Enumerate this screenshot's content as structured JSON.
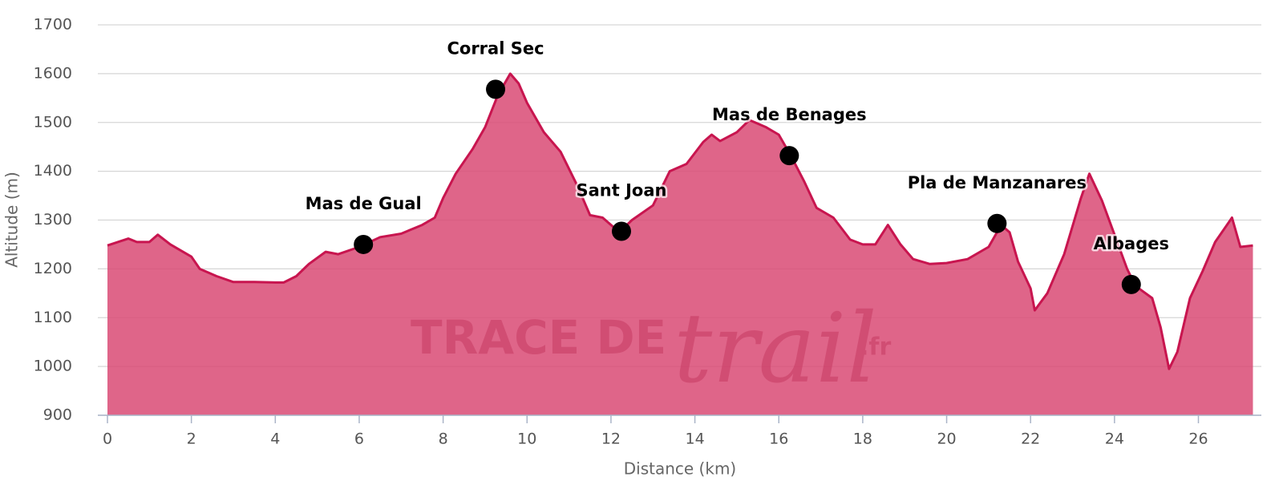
{
  "chart_data": {
    "type": "area",
    "x_label": "Distance (km)",
    "y_label": "Altitude (m)",
    "watermark": {
      "main": "TRACE DE",
      "script": "trail",
      "suffix": ".fr"
    },
    "xlim": [
      0,
      27.5
    ],
    "xticks": [
      0,
      2,
      4,
      6,
      8,
      10,
      12,
      14,
      16,
      18,
      20,
      22,
      24,
      26
    ],
    "ylim": [
      900,
      1700
    ],
    "yticks": [
      900,
      1000,
      1100,
      1200,
      1300,
      1400,
      1500,
      1600,
      1700
    ],
    "grid": true,
    "fill_color": "#d94a74",
    "line_color": "#c8154f",
    "x": [
      0,
      0.5,
      0.7,
      1,
      1.2,
      1.5,
      2,
      2.2,
      2.6,
      3,
      3.5,
      4,
      4.2,
      4.5,
      4.8,
      5.2,
      5.5,
      6,
      6.5,
      7,
      7.5,
      7.8,
      8,
      8.3,
      8.7,
      9,
      9.3,
      9.6,
      9.8,
      10,
      10.4,
      10.8,
      11.2,
      11.5,
      11.8,
      12.2,
      12.5,
      13,
      13.4,
      13.8,
      14.2,
      14.4,
      14.6,
      15,
      15.3,
      15.7,
      16,
      16.3,
      16.6,
      16.9,
      17.3,
      17.7,
      18,
      18.3,
      18.6,
      18.9,
      19.2,
      19.6,
      20,
      20.5,
      21,
      21.3,
      21.5,
      21.7,
      22,
      22.1,
      22.4,
      22.8,
      23.2,
      23.4,
      23.7,
      24,
      24.3,
      24.5,
      24.9,
      25.1,
      25.3,
      25.5,
      25.8,
      26.1,
      26.4,
      26.6,
      26.8,
      27,
      27.3
    ],
    "values": [
      1248,
      1262,
      1255,
      1255,
      1270,
      1250,
      1225,
      1200,
      1185,
      1173,
      1173,
      1172,
      1172,
      1185,
      1210,
      1235,
      1230,
      1245,
      1265,
      1272,
      1290,
      1305,
      1345,
      1395,
      1445,
      1490,
      1555,
      1600,
      1580,
      1540,
      1480,
      1440,
      1370,
      1310,
      1305,
      1275,
      1300,
      1330,
      1400,
      1415,
      1460,
      1475,
      1462,
      1480,
      1505,
      1490,
      1475,
      1430,
      1380,
      1325,
      1305,
      1260,
      1250,
      1250,
      1290,
      1250,
      1220,
      1210,
      1212,
      1220,
      1245,
      1290,
      1275,
      1215,
      1160,
      1115,
      1150,
      1230,
      1345,
      1395,
      1340,
      1270,
      1200,
      1165,
      1140,
      1080,
      995,
      1030,
      1140,
      1195,
      1255,
      1280,
      1305,
      1245,
      1248
    ],
    "waypoints": [
      {
        "name": "Mas de Gual",
        "x": 6.1,
        "y": 1250
      },
      {
        "name": "Corral Sec",
        "x": 9.25,
        "y": 1568
      },
      {
        "name": "Sant Joan",
        "x": 12.25,
        "y": 1277
      },
      {
        "name": "Mas de Benages",
        "x": 16.25,
        "y": 1432
      },
      {
        "name": "Pla de Manzanares",
        "x": 21.2,
        "y": 1293
      },
      {
        "name": "Albages",
        "x": 24.4,
        "y": 1168
      }
    ]
  }
}
